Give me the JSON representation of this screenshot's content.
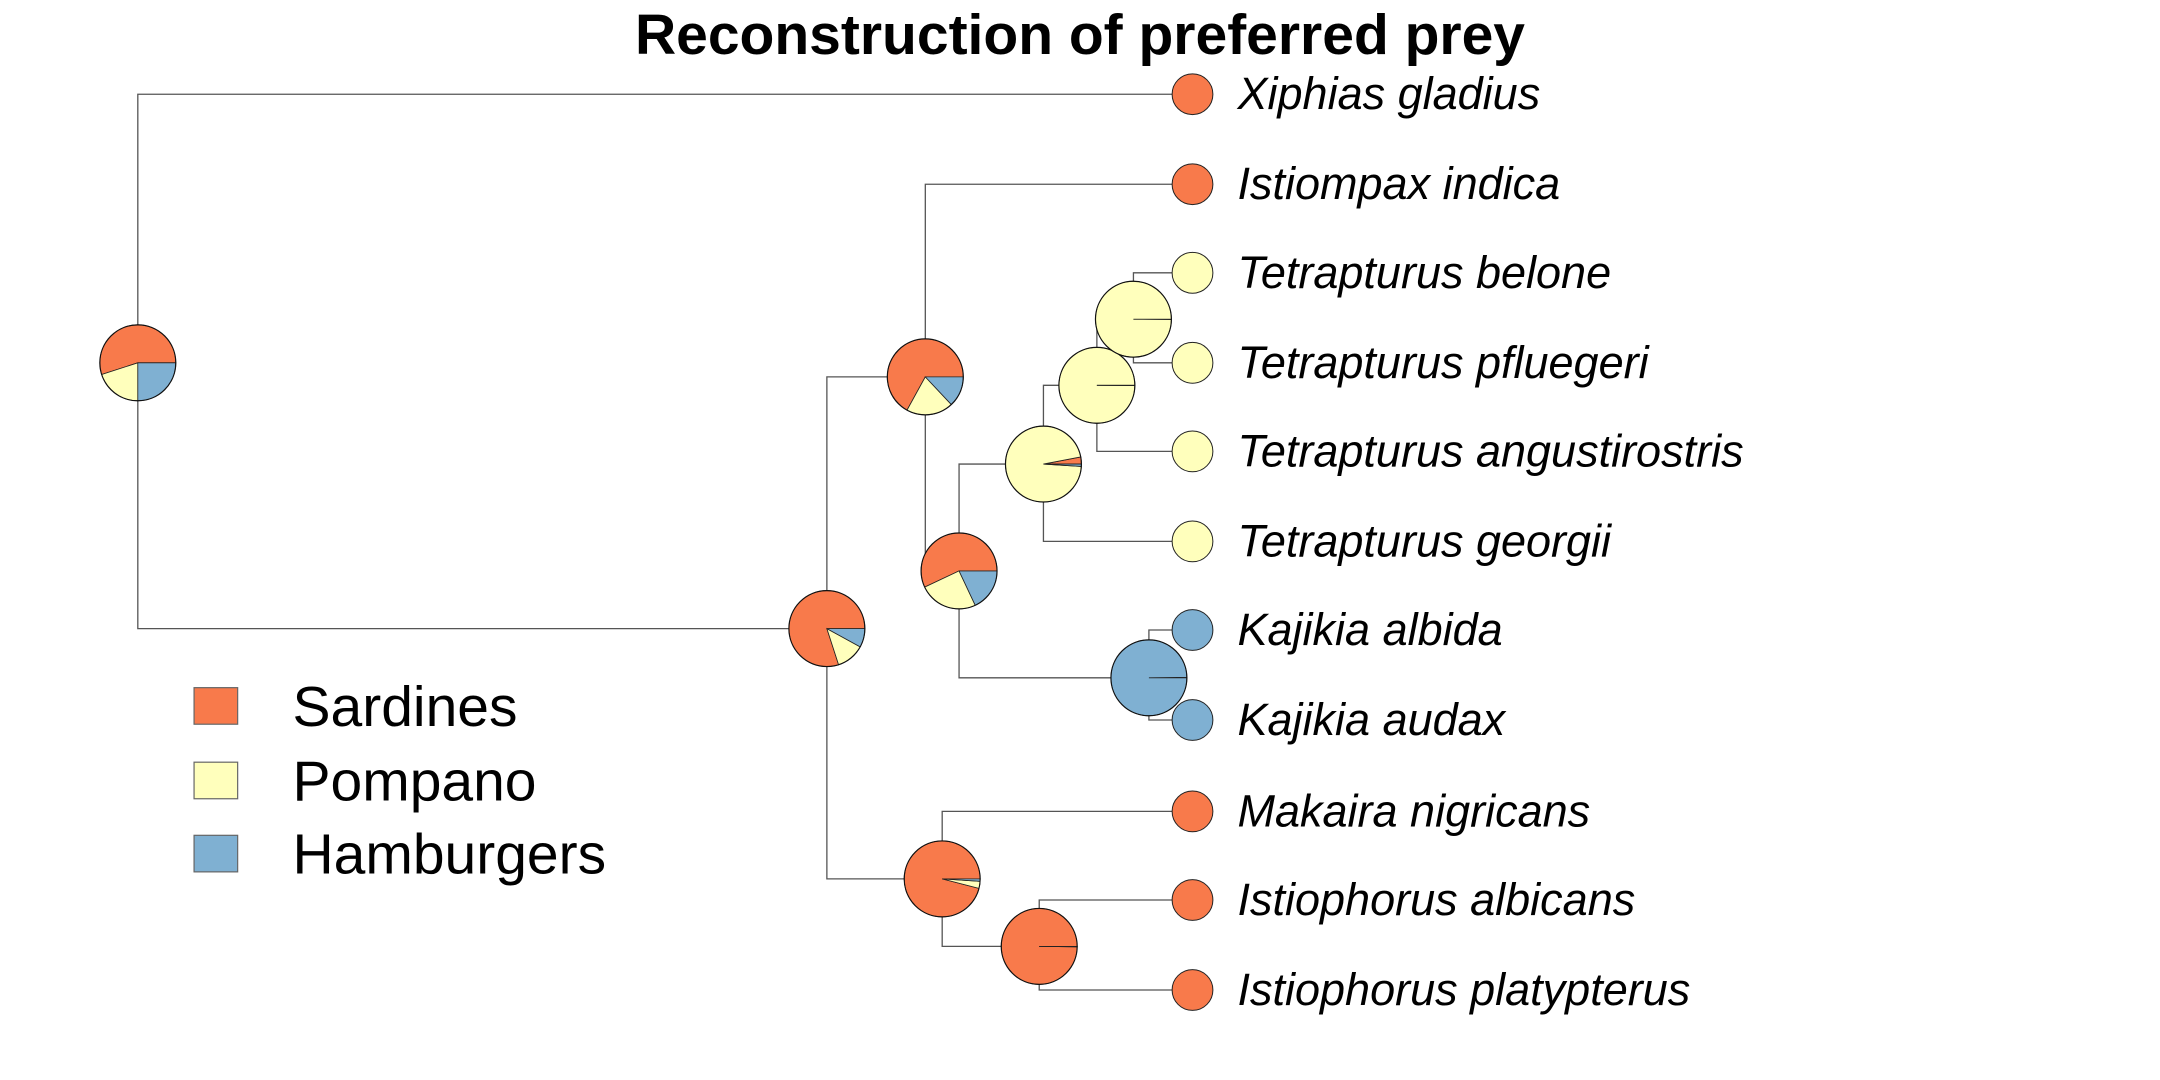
{
  "title": "Reconstruction of preferred prey",
  "colors": {
    "Sardines": "#f87a4b",
    "Pompano": "#ffffbc",
    "Hamburgers": "#7fb0d2"
  },
  "legend": {
    "items": [
      {
        "label": "Sardines",
        "color": "#f87a4b"
      },
      {
        "label": "Pompano",
        "color": "#ffffbc"
      },
      {
        "label": "Hamburgers",
        "color": "#7fb0d2"
      }
    ]
  },
  "tree": {
    "tips": [
      {
        "name": "Xiphias gladius",
        "state": "Sardines"
      },
      {
        "name": "Istiompax indica",
        "state": "Sardines"
      },
      {
        "name": "Tetrapturus belone",
        "state": "Pompano"
      },
      {
        "name": "Tetrapturus pfluegeri",
        "state": "Pompano"
      },
      {
        "name": "Tetrapturus angustirostris",
        "state": "Pompano"
      },
      {
        "name": "Tetrapturus georgii",
        "state": "Pompano"
      },
      {
        "name": "Kajikia albida",
        "state": "Hamburgers"
      },
      {
        "name": "Kajikia audax",
        "state": "Hamburgers"
      },
      {
        "name": "Makaira nigricans",
        "state": "Sardines"
      },
      {
        "name": "Istiophorus albicans",
        "state": "Sardines"
      },
      {
        "name": "Istiophorus platypterus",
        "state": "Sardines"
      }
    ],
    "nodes": [
      {
        "id": "root",
        "probs": {
          "Sardines": 0.55,
          "Pompano": 0.2,
          "Hamburgers": 0.25
        }
      },
      {
        "id": "n_istiophoridae",
        "probs": {
          "Sardines": 0.8,
          "Pompano": 0.12,
          "Hamburgers": 0.08
        }
      },
      {
        "id": "n_upper",
        "probs": {
          "Sardines": 0.67,
          "Pompano": 0.2,
          "Hamburgers": 0.13
        }
      },
      {
        "id": "n_tetra_kaj",
        "probs": {
          "Sardines": 0.57,
          "Pompano": 0.25,
          "Hamburgers": 0.18
        }
      },
      {
        "id": "n_tetra",
        "probs": {
          "Sardines": 0.03,
          "Pompano": 0.96,
          "Hamburgers": 0.01
        }
      },
      {
        "id": "n_tetra_inner",
        "probs": {
          "Sardines": 0.0,
          "Pompano": 0.999,
          "Hamburgers": 0.001
        }
      },
      {
        "id": "n_belone_pfluegeri",
        "probs": {
          "Sardines": 0.0,
          "Pompano": 0.999,
          "Hamburgers": 0.001
        }
      },
      {
        "id": "n_kajikia",
        "probs": {
          "Sardines": 0.002,
          "Pompano": 0.0,
          "Hamburgers": 0.998
        }
      },
      {
        "id": "n_lower",
        "probs": {
          "Sardines": 0.96,
          "Pompano": 0.03,
          "Hamburgers": 0.01
        }
      },
      {
        "id": "n_istiophorus",
        "probs": {
          "Sardines": 0.998,
          "Pompano": 0.001,
          "Hamburgers": 0.001
        }
      }
    ]
  }
}
